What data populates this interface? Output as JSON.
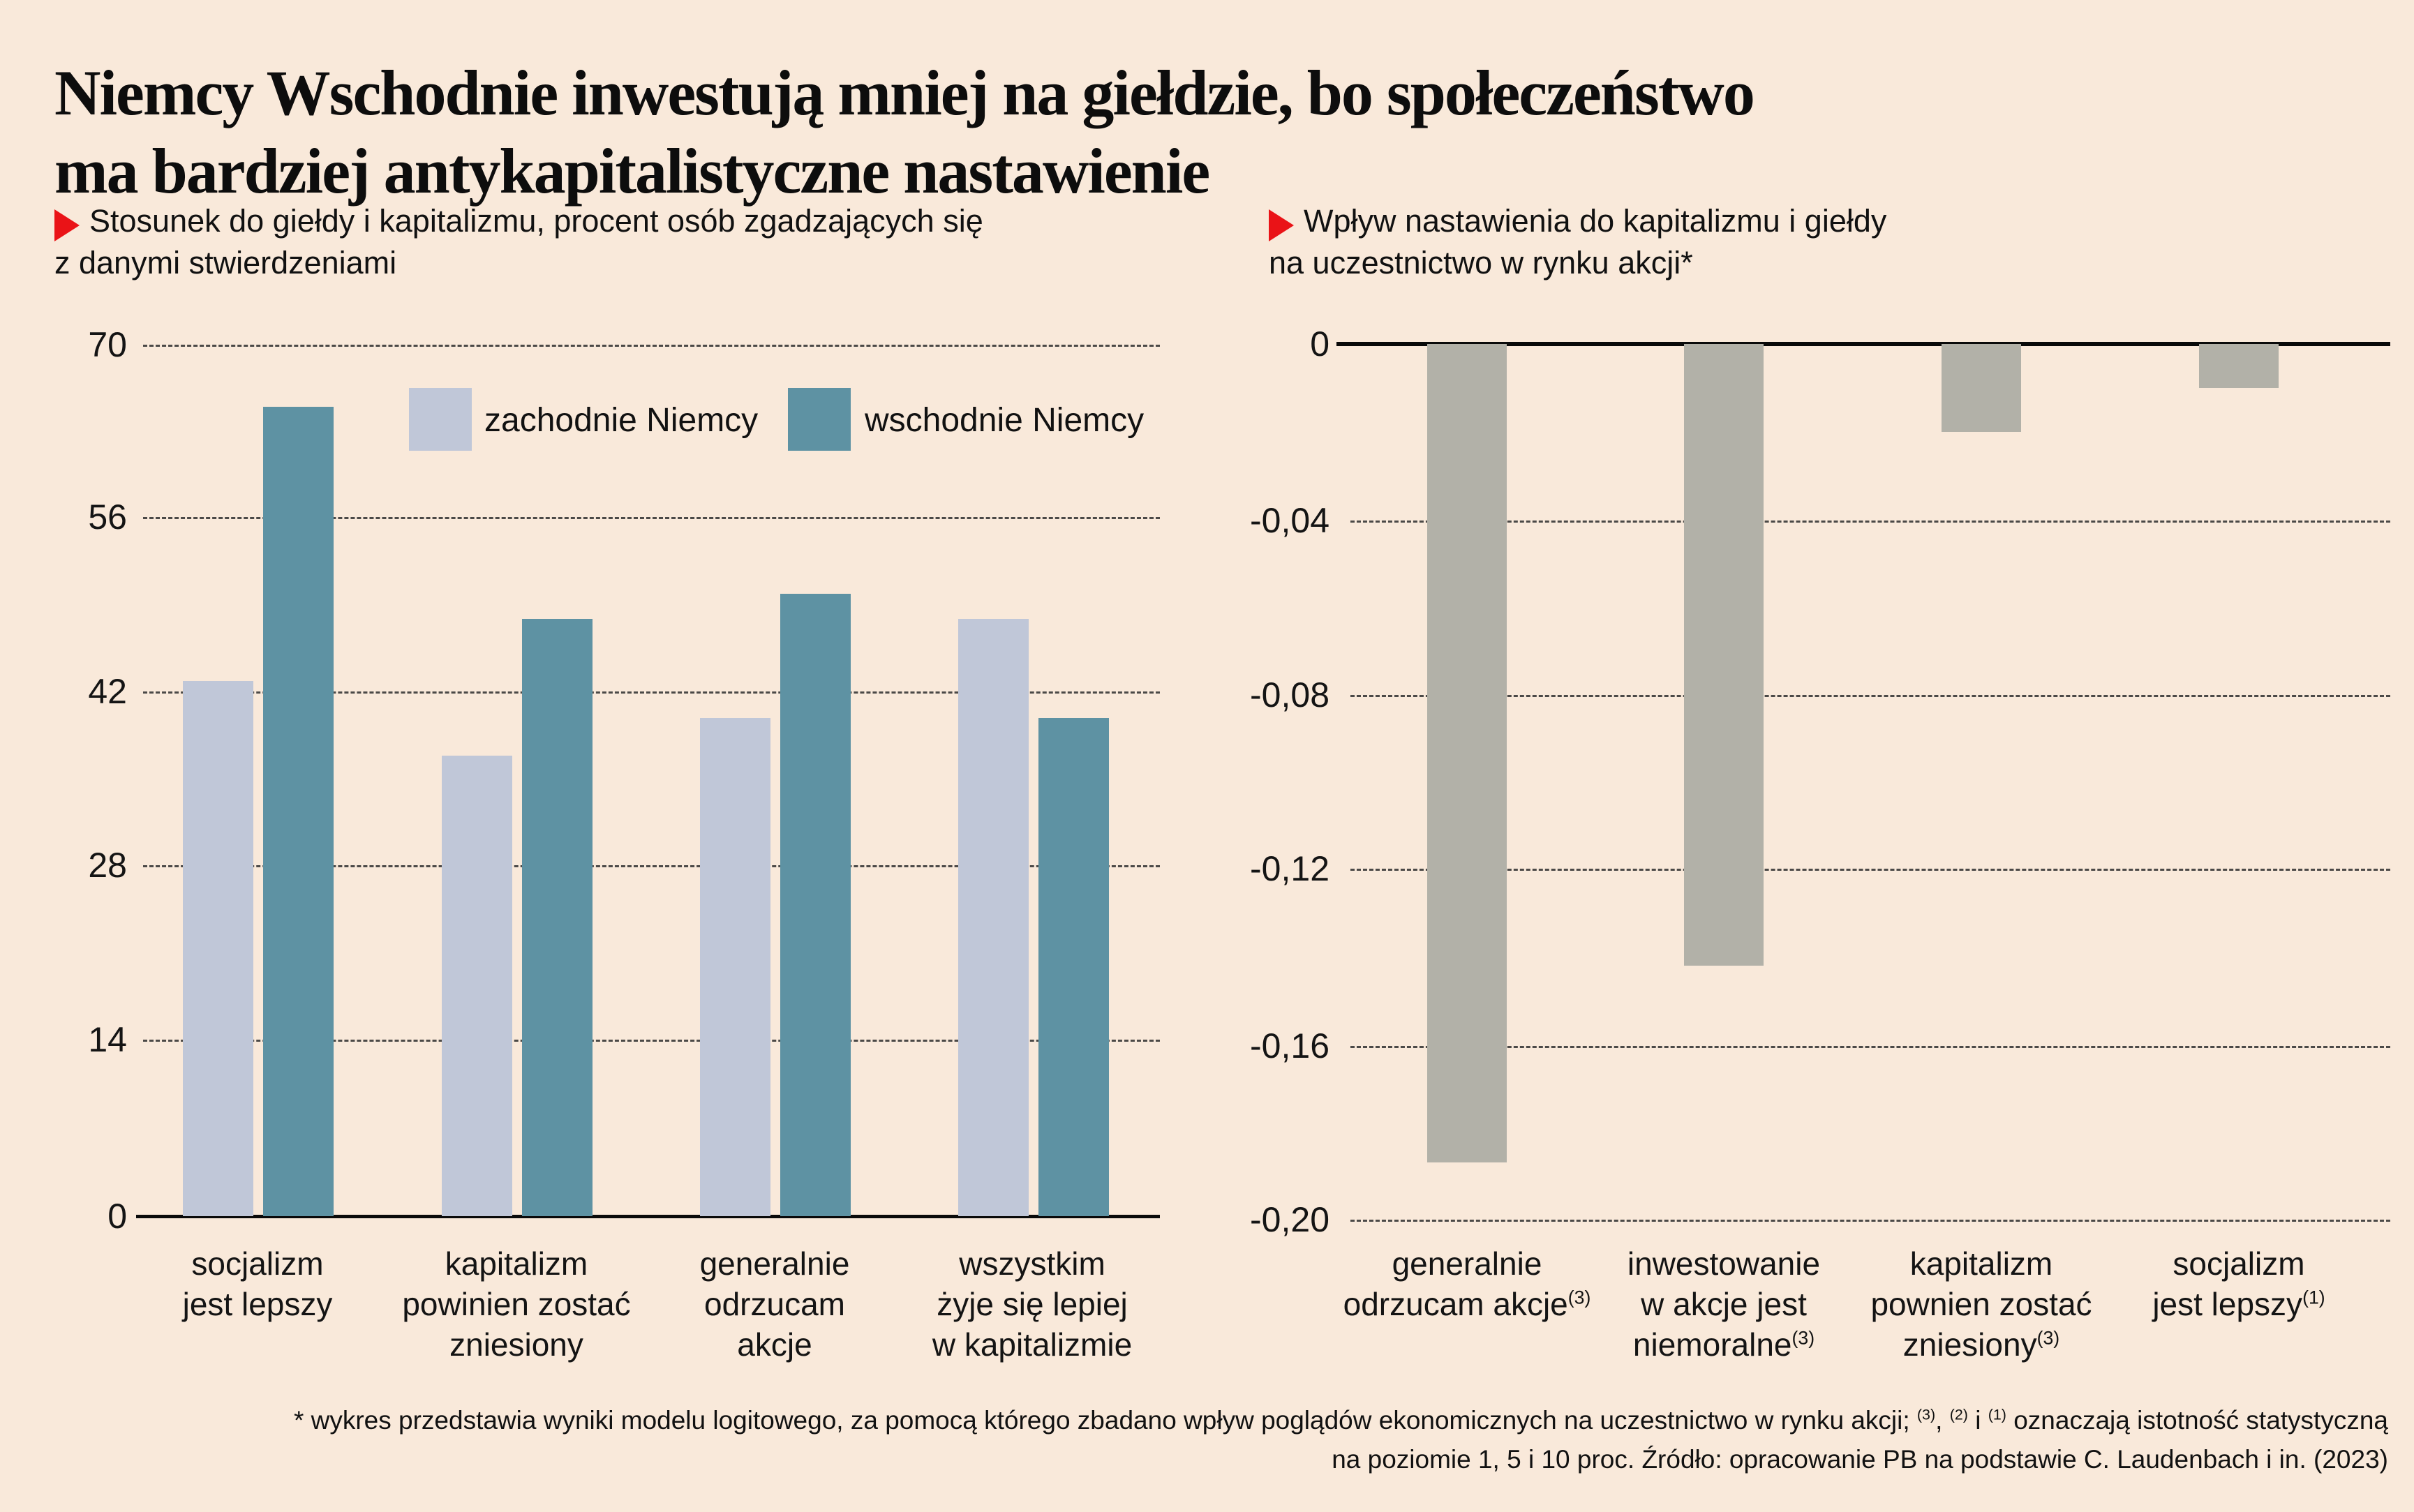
{
  "page": {
    "background": "#f9e9da"
  },
  "header": {
    "title_line1": "Niemcy Wschodnie inwestują mniej na giełdzie, bo społeczeństwo",
    "title_line2": "ma bardziej antykapitalistyczne nastawienie"
  },
  "kickers": {
    "left": {
      "line1": "Stosunek do giełdy i kapitalizmu, procent osób zgadzających się",
      "line2": "z danymi stwierdzeniami"
    },
    "right": {
      "line1": "Wpływ nastawienia do kapitalizmu i giełdy",
      "line2": "na uczestnictwo w rynku akcji*"
    }
  },
  "legend": {
    "items": [
      {
        "label": "zachodnie Niemcy",
        "color": "#c0c7d8"
      },
      {
        "label": "wschodnie Niemcy",
        "color": "#5e92a3"
      }
    ]
  },
  "colors": {
    "background": "#f9e9da",
    "west_series": "#c0c7d8",
    "east_series": "#5e92a3",
    "effect_bars": "#b2b1a8",
    "accent_red": "#ea1317",
    "axis": "#0a0a0a"
  },
  "chart_data": [
    {
      "type": "bar",
      "title": "Stosunek do giełdy i kapitalizmu, procent osób zgadzających się z danymi stwierdzeniami",
      "categories": [
        [
          {
            "t": "socjalizm"
          },
          {
            "t": "jest lepszy"
          }
        ],
        [
          {
            "t": "kapitalizm"
          },
          {
            "t": "powinien zostać"
          },
          {
            "t": "zniesiony"
          }
        ],
        [
          {
            "t": "generalnie"
          },
          {
            "t": "odrzucam"
          },
          {
            "t": "akcje"
          }
        ],
        [
          {
            "t": "wszystkim"
          },
          {
            "t": "żyje się lepiej"
          },
          {
            "t": "w kapitalizmie"
          }
        ]
      ],
      "series": [
        {
          "name": "zachodnie Niemcy",
          "color": "#c0c7d8",
          "values": [
            43,
            37,
            40,
            48
          ]
        },
        {
          "name": "wschodnie Niemcy",
          "color": "#5e92a3",
          "values": [
            65,
            48,
            50,
            40
          ]
        }
      ],
      "ylim": [
        0,
        70
      ],
      "yticks": [
        "70",
        "56",
        "42",
        "28",
        "14",
        "0"
      ],
      "grid": "dashed",
      "legend_position": "top-inside"
    },
    {
      "type": "bar",
      "title": "Wpływ nastawienia do kapitalizmu i giełdy na uczestnictwo w rynku akcji*",
      "categories": [
        [
          {
            "t": "generalnie"
          },
          {
            "t": "odrzucam akcje",
            "sup": "(3)"
          }
        ],
        [
          {
            "t": "inwestowanie"
          },
          {
            "t": "w akcje jest"
          },
          {
            "t": "niemoralne",
            "sup": "(3)"
          }
        ],
        [
          {
            "t": "kapitalizm"
          },
          {
            "t": "pownien zostać"
          },
          {
            "t": "zniesiony",
            "sup": "(3)"
          }
        ],
        [
          {
            "t": "socjalizm"
          },
          {
            "t": "jest lepszy",
            "sup": "(1)"
          }
        ]
      ],
      "series": [
        {
          "name": "wpływ na uczestnictwo w rynku akcji",
          "color": "#b2b1a8",
          "values": [
            -0.187,
            -0.142,
            -0.02,
            -0.01
          ]
        }
      ],
      "ylim": [
        -0.2,
        0
      ],
      "yticks": [
        "0",
        "-0,04",
        "-0,08",
        "-0,12",
        "-0,16",
        "-0,20"
      ],
      "grid": "dashed",
      "legend_position": "none"
    }
  ],
  "footnote": {
    "line1_parts": [
      {
        "t": "* wykres przedstawia wyniki modelu logitowego, za pomocą którego zbadano wpływ poglądów ekonomicznych na uczestnictwo w rynku akcji; "
      },
      {
        "sup": "(3)"
      },
      {
        "t": ", "
      },
      {
        "sup": "(2)"
      },
      {
        "t": " i "
      },
      {
        "sup": "(1)"
      },
      {
        "t": " oznaczają istotność statystyczną"
      }
    ],
    "line2": "na poziomie 1, 5 i 10 proc. Źródło: opracowanie PB na podstawie C. Laudenbach i in. (2023)"
  }
}
